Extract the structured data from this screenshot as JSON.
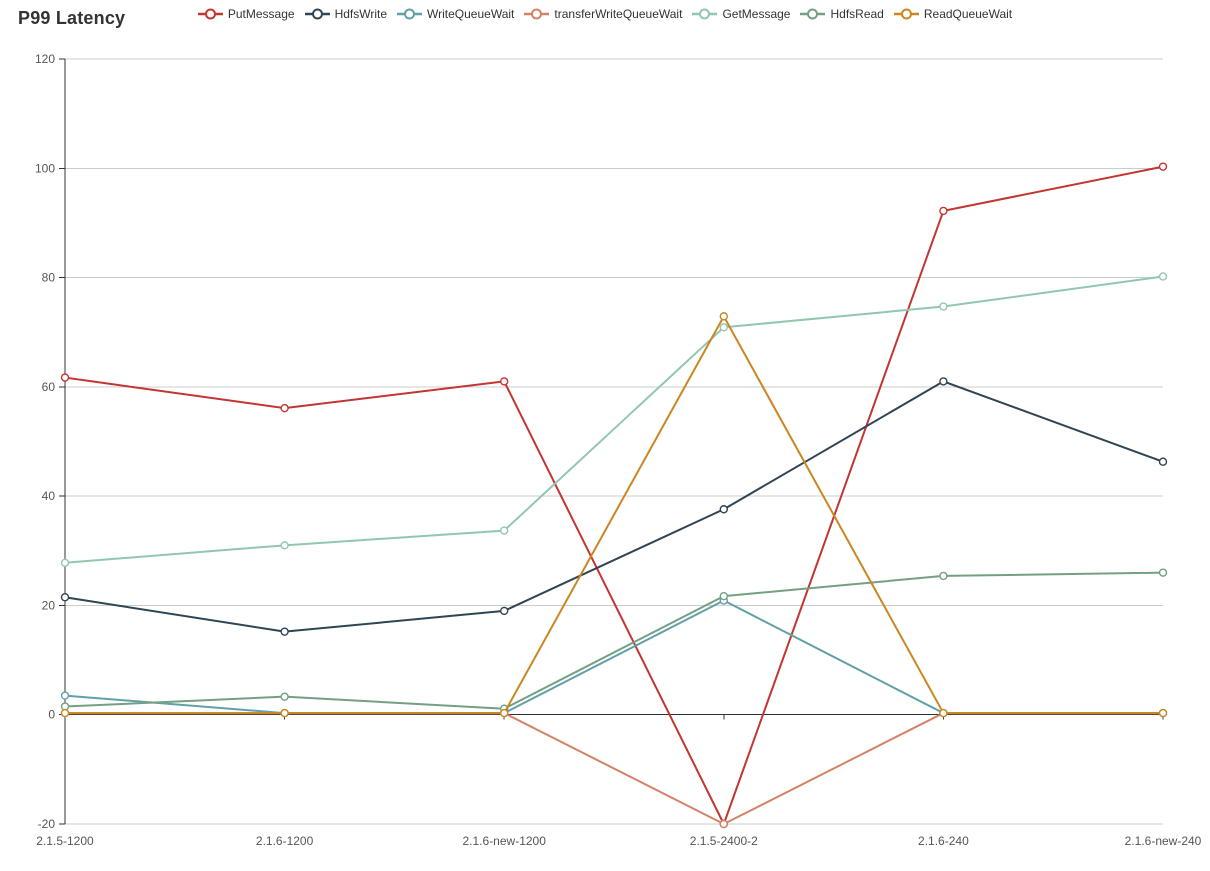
{
  "title": "P99 Latency",
  "chart_data": {
    "type": "line",
    "title": "P99 Latency",
    "categories": [
      "2.1.5-1200",
      "2.1.6-1200",
      "2.1.6-new-1200",
      "2.1.5-2400-2",
      "2.1.6-240",
      "2.1.6-new-240"
    ],
    "series": [
      {
        "name": "PutMessage",
        "color": "#c23531",
        "values": [
          61.7,
          56.1,
          61.0,
          -20.0,
          92.2,
          100.3
        ]
      },
      {
        "name": "HdfsWrite",
        "color": "#2f4554",
        "values": [
          21.5,
          15.2,
          19.0,
          37.6,
          61.0,
          46.3
        ]
      },
      {
        "name": "WriteQueueWait",
        "color": "#61a0a8",
        "values": [
          3.5,
          0.3,
          0.3,
          20.9,
          0.3,
          0.3
        ]
      },
      {
        "name": "transferWriteQueueWait",
        "color": "#d48265",
        "values": [
          0.3,
          0.3,
          0.3,
          -20.0,
          0.3,
          0.3
        ]
      },
      {
        "name": "GetMessage",
        "color": "#91c7ae",
        "values": [
          27.8,
          31.0,
          33.7,
          70.9,
          74.7,
          80.2
        ]
      },
      {
        "name": "HdfsRead",
        "color": "#749f83",
        "values": [
          1.5,
          3.3,
          1.1,
          21.7,
          25.4,
          26.0
        ]
      },
      {
        "name": "ReadQueueWait",
        "color": "#ca8622",
        "values": [
          0.3,
          0.3,
          0.3,
          72.9,
          0.3,
          0.3
        ]
      }
    ],
    "yticks": [
      -20,
      0,
      20,
      40,
      60,
      80,
      100,
      120
    ],
    "ylim": [
      -20,
      120
    ],
    "xlabel": "",
    "ylabel": "",
    "grid": true,
    "legend_position": "top",
    "marker": "hollow-circle",
    "style": {
      "axis_color": "#333333",
      "grid_color": "#cccccc",
      "tick_label_color": "#555555",
      "legend_text_color": "#333333",
      "title_color": "#333333",
      "background": "#ffffff"
    }
  }
}
